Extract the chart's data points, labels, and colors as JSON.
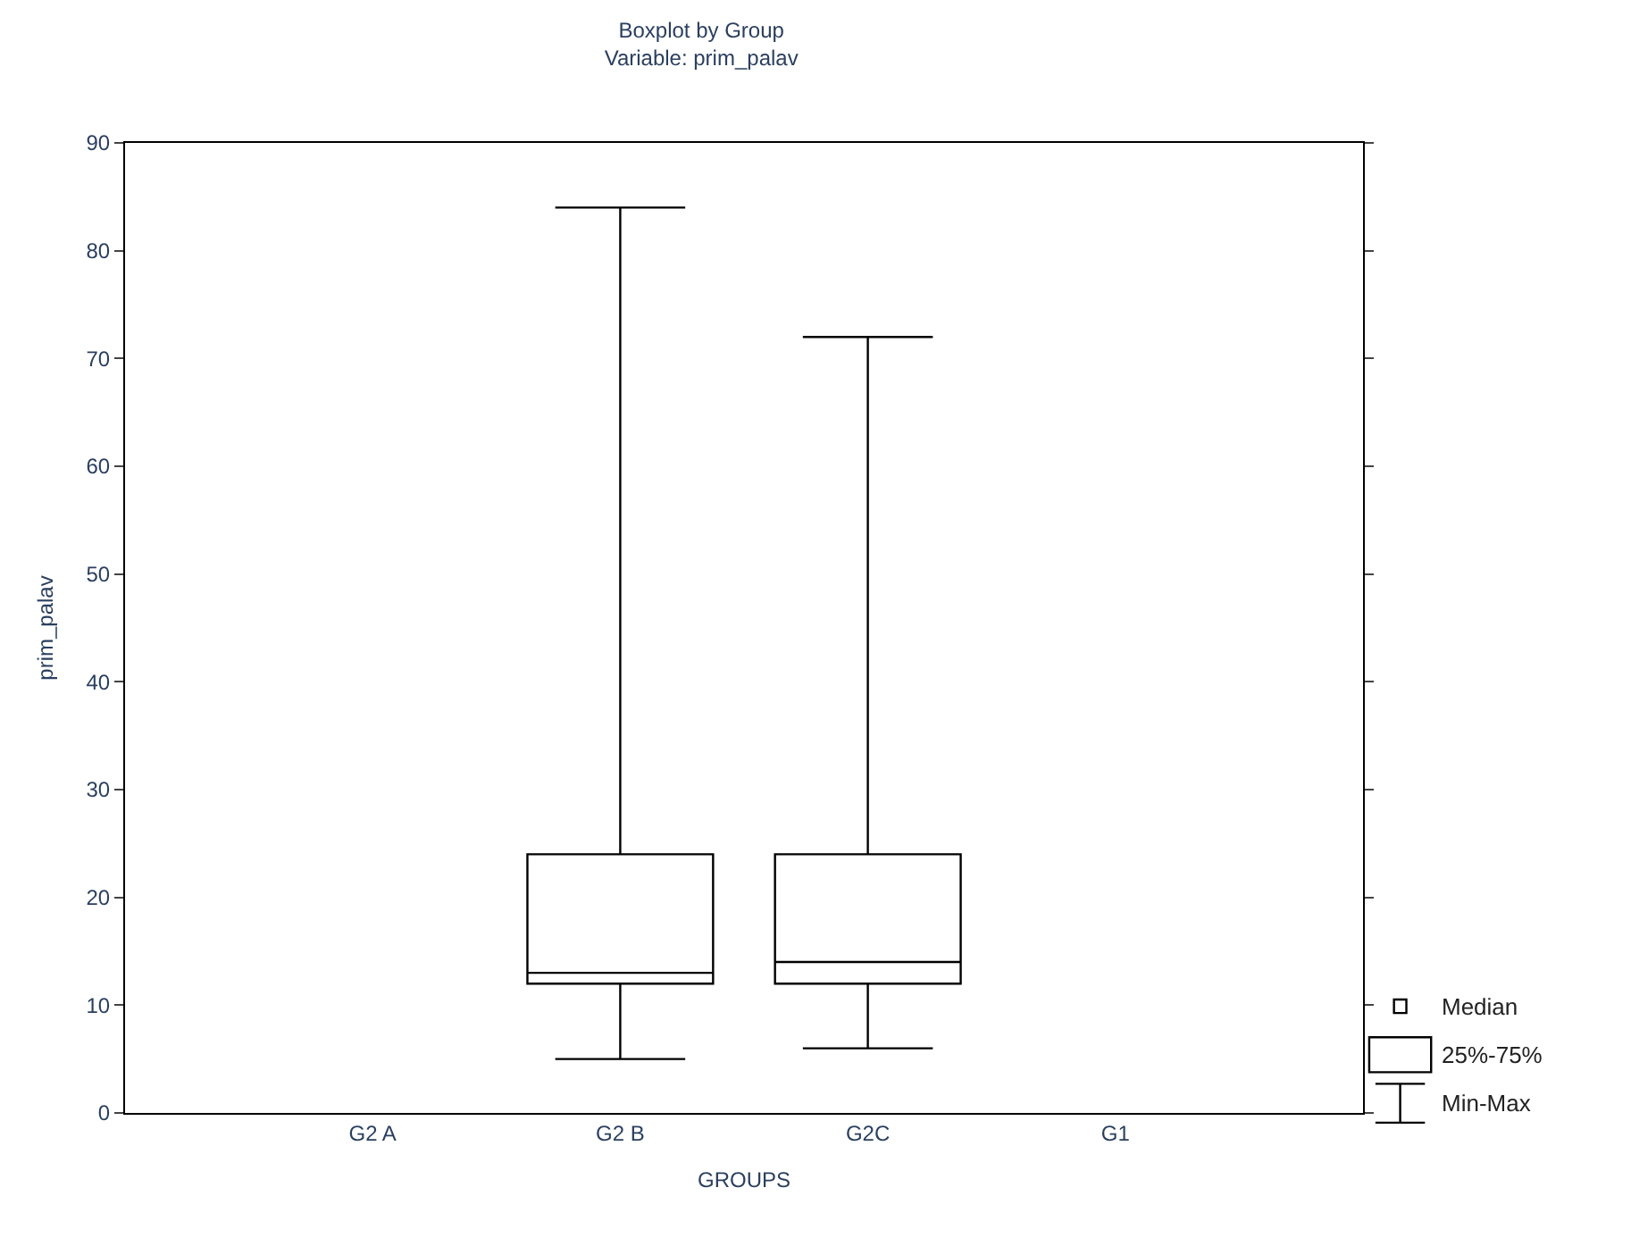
{
  "chart_data": {
    "type": "box",
    "title": "Boxplot by Group",
    "subtitle": "Variable: prim_palav",
    "xlabel": "GROUPS",
    "ylabel": "prim_palav",
    "categories": [
      "G2 A",
      "G2 B",
      "G2C",
      "G1"
    ],
    "boxes": [
      null,
      {
        "low": 5,
        "q1": 12,
        "median": 13,
        "q3": 24,
        "high": 84
      },
      {
        "low": 6,
        "q1": 12,
        "median": 14,
        "q3": 24,
        "high": 72
      },
      null
    ],
    "color": "#000000",
    "ylim": [
      0,
      90
    ],
    "yticks": [
      0,
      10,
      20,
      30,
      40,
      50,
      60,
      70,
      80,
      90
    ],
    "annotations": [
      "Median",
      "25%-75%",
      "Min-Max"
    ]
  }
}
